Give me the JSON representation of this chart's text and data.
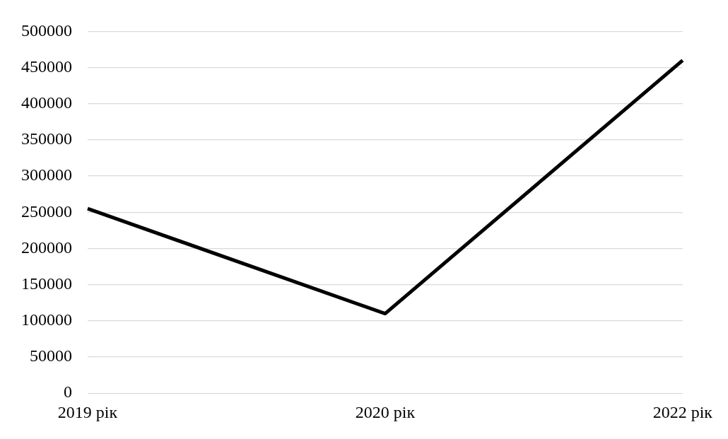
{
  "chart_data": {
    "type": "line",
    "categories": [
      "2019 рік",
      "2020 рік",
      "2022 рік"
    ],
    "series": [
      {
        "color": "#000000",
        "values": [
          255000,
          110000,
          460000
        ]
      }
    ],
    "ylim": [
      0,
      500000
    ],
    "yticks": [
      0,
      50000,
      100000,
      150000,
      200000,
      250000,
      300000,
      350000,
      400000,
      450000,
      500000
    ],
    "grid": "y",
    "legend": false,
    "marker": "none",
    "line_style": "solid"
  }
}
